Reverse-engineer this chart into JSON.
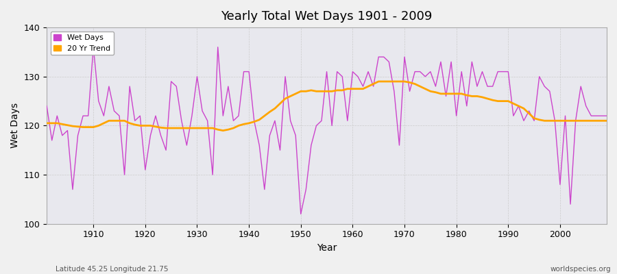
{
  "title": "Yearly Total Wet Days 1901 - 2009",
  "xlabel": "Year",
  "ylabel": "Wet Days",
  "footnote_left": "Latitude 45.25 Longitude 21.75",
  "footnote_right": "worldspecies.org",
  "ylim": [
    100,
    140
  ],
  "xlim": [
    1901,
    2009
  ],
  "line_color": "#CC44CC",
  "trend_color": "#FFA500",
  "bg_color": "#F0F0F0",
  "plot_bg_color": "#E8E8EE",
  "legend_labels": [
    "Wet Days",
    "20 Yr Trend"
  ],
  "years": [
    1901,
    1902,
    1903,
    1904,
    1905,
    1906,
    1907,
    1908,
    1909,
    1910,
    1911,
    1912,
    1913,
    1914,
    1915,
    1916,
    1917,
    1918,
    1919,
    1920,
    1921,
    1922,
    1923,
    1924,
    1925,
    1926,
    1927,
    1928,
    1929,
    1930,
    1931,
    1932,
    1933,
    1934,
    1935,
    1936,
    1937,
    1938,
    1939,
    1940,
    1941,
    1942,
    1943,
    1944,
    1945,
    1946,
    1947,
    1948,
    1949,
    1950,
    1951,
    1952,
    1953,
    1954,
    1955,
    1956,
    1957,
    1958,
    1959,
    1960,
    1961,
    1962,
    1963,
    1964,
    1965,
    1966,
    1967,
    1968,
    1969,
    1970,
    1971,
    1972,
    1973,
    1974,
    1975,
    1976,
    1977,
    1978,
    1979,
    1980,
    1981,
    1982,
    1983,
    1984,
    1985,
    1986,
    1987,
    1988,
    1989,
    1990,
    1991,
    1992,
    1993,
    1994,
    1995,
    1996,
    1997,
    1998,
    1999,
    2000,
    2001,
    2002,
    2003,
    2004,
    2005,
    2006,
    2007,
    2008,
    2009
  ],
  "wet_days": [
    124,
    117,
    122,
    118,
    119,
    107,
    118,
    122,
    122,
    136,
    125,
    122,
    128,
    123,
    122,
    110,
    128,
    121,
    122,
    111,
    118,
    122,
    118,
    115,
    129,
    128,
    121,
    116,
    122,
    130,
    123,
    121,
    110,
    136,
    122,
    128,
    121,
    122,
    131,
    131,
    121,
    116,
    107,
    118,
    121,
    115,
    130,
    121,
    118,
    102,
    107,
    116,
    120,
    121,
    131,
    120,
    131,
    130,
    121,
    131,
    130,
    128,
    131,
    128,
    134,
    134,
    133,
    127,
    116,
    134,
    127,
    131,
    131,
    130,
    131,
    128,
    133,
    126,
    133,
    122,
    131,
    124,
    133,
    128,
    131,
    128,
    128,
    131,
    131,
    131,
    122,
    124,
    121,
    123,
    121,
    130,
    128,
    127,
    121,
    108,
    122,
    104,
    121,
    128,
    124,
    122,
    122,
    122,
    122
  ],
  "trend_values": [
    120.5,
    120.5,
    120.5,
    120.3,
    120.1,
    119.9,
    119.8,
    119.7,
    119.7,
    119.7,
    120.0,
    120.5,
    121.0,
    121.0,
    121.0,
    121.0,
    120.5,
    120.2,
    120.0,
    120.0,
    120.0,
    119.8,
    119.6,
    119.5,
    119.5,
    119.5,
    119.5,
    119.5,
    119.5,
    119.5,
    119.5,
    119.5,
    119.5,
    119.2,
    119.0,
    119.2,
    119.5,
    120.0,
    120.3,
    120.5,
    120.8,
    121.2,
    122.0,
    122.8,
    123.5,
    124.5,
    125.5,
    126.0,
    126.5,
    127.0,
    127.0,
    127.2,
    127.0,
    127.0,
    127.0,
    127.0,
    127.2,
    127.2,
    127.5,
    127.5,
    127.5,
    127.5,
    128.0,
    128.5,
    129.0,
    129.0,
    129.0,
    129.0,
    129.0,
    129.0,
    128.8,
    128.5,
    128.0,
    127.5,
    127.0,
    126.8,
    126.5,
    126.5,
    126.5,
    126.5,
    126.5,
    126.2,
    126.0,
    126.0,
    125.8,
    125.5,
    125.2,
    125.0,
    125.0,
    125.0,
    124.5,
    124.0,
    123.5,
    122.5,
    121.5,
    121.2,
    121.0,
    121.0,
    121.0,
    121.0,
    121.0,
    121.0,
    121.0,
    121.0,
    121.0,
    121.0,
    121.0,
    121.0,
    121.0
  ]
}
